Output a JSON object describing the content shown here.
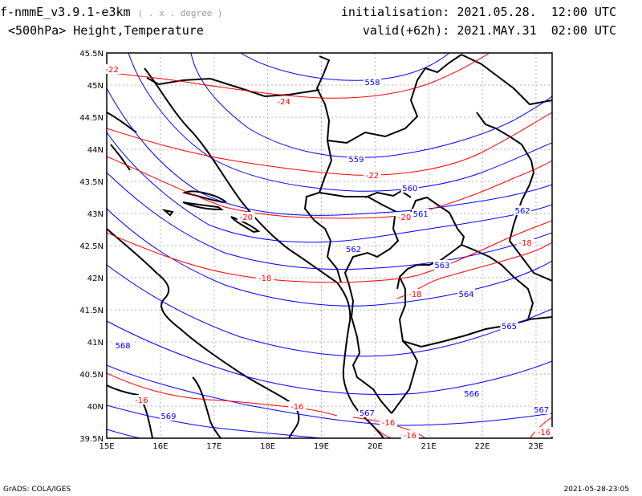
{
  "header": {
    "model": "f-nmmE_v3.9.1-e3km",
    "unit": "( . x . degree )",
    "field": "<500hPa> Height,Temperature",
    "init_label": "initialisation:",
    "init_value": "2021.05.28.  12:00 UTC",
    "valid_label": "valid(+62h):",
    "valid_value": "2021.MAY.31  02:00 UTC"
  },
  "footer": {
    "credit": "GrADS: COLA/IGES",
    "timestamp": "2021-05-28-23:05"
  },
  "map": {
    "lon_range": [
      15.0,
      23.3
    ],
    "lat_range": [
      39.5,
      45.5
    ],
    "x_ticks": [
      "15E",
      "16E",
      "17E",
      "18E",
      "19E",
      "20E",
      "21E",
      "22E",
      "23E"
    ],
    "y_ticks": [
      "39.5N",
      "40N",
      "40.5N",
      "41N",
      "41.5N",
      "42N",
      "42.5N",
      "43N",
      "43.5N",
      "44N",
      "44.5N",
      "45N",
      "45.5N"
    ],
    "height_color": "#0000ff",
    "temperature_color": "#ff0000",
    "height_labels": [
      {
        "text": "558",
        "lon": 19.95,
        "lat": 45.05
      },
      {
        "text": "559",
        "lon": 19.65,
        "lat": 43.85
      },
      {
        "text": "560",
        "lon": 20.65,
        "lat": 43.4
      },
      {
        "text": "561",
        "lon": 20.85,
        "lat": 43.0
      },
      {
        "text": "562",
        "lon": 22.75,
        "lat": 43.05
      },
      {
        "text": "562",
        "lon": 19.6,
        "lat": 42.45
      },
      {
        "text": "563",
        "lon": 21.25,
        "lat": 42.2
      },
      {
        "text": "564",
        "lon": 21.7,
        "lat": 41.75
      },
      {
        "text": "565",
        "lon": 22.5,
        "lat": 41.25
      },
      {
        "text": "566",
        "lon": 21.8,
        "lat": 40.2
      },
      {
        "text": "567",
        "lon": 19.85,
        "lat": 39.9
      },
      {
        "text": "567",
        "lon": 23.1,
        "lat": 39.95
      },
      {
        "text": "568",
        "lon": 15.3,
        "lat": 40.95
      },
      {
        "text": "569",
        "lon": 16.15,
        "lat": 39.85
      }
    ],
    "temperature_labels": [
      {
        "text": "-22",
        "lon": 15.1,
        "lat": 45.25
      },
      {
        "text": "-24",
        "lon": 18.3,
        "lat": 44.75
      },
      {
        "text": "-22",
        "lon": 19.95,
        "lat": 43.6
      },
      {
        "text": "-20",
        "lon": 17.6,
        "lat": 42.95
      },
      {
        "text": "-20",
        "lon": 20.55,
        "lat": 42.95
      },
      {
        "text": "-18",
        "lon": 22.8,
        "lat": 42.55
      },
      {
        "text": "-18",
        "lon": 17.95,
        "lat": 42.0
      },
      {
        "text": "-18",
        "lon": 20.75,
        "lat": 41.75
      },
      {
        "text": "-16",
        "lon": 15.65,
        "lat": 40.1
      },
      {
        "text": "-16",
        "lon": 18.55,
        "lat": 40.0
      },
      {
        "text": "-16",
        "lon": 20.25,
        "lat": 39.75
      },
      {
        "text": "-16",
        "lon": 20.65,
        "lat": 39.55
      },
      {
        "text": "-16",
        "lon": 23.15,
        "lat": 39.6
      }
    ]
  }
}
